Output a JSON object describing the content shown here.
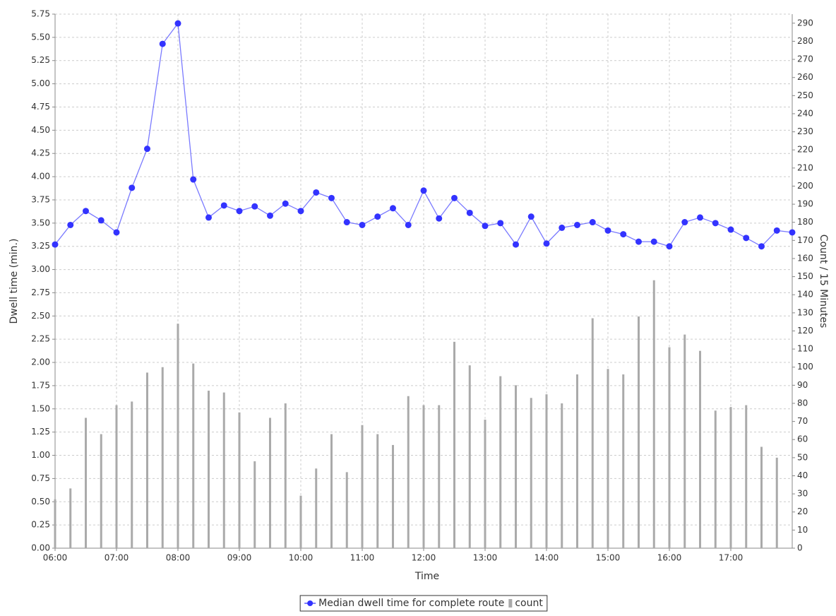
{
  "chart_data": {
    "type": "line",
    "x_label": "Time",
    "y_label": "Dwell time (min.)",
    "y2_label": "Count / 15 Minutes",
    "categories": [
      "06:00",
      null,
      null,
      null,
      "07:00",
      null,
      null,
      null,
      "08:00",
      null,
      null,
      null,
      "09:00",
      null,
      null,
      null,
      "10:00",
      null,
      null,
      null,
      "11:00",
      null,
      null,
      null,
      "12:00",
      null,
      null,
      null,
      "13:00",
      null,
      null,
      null,
      "14:00",
      null,
      null,
      null,
      "15:00",
      null,
      null,
      null,
      "16:00",
      null,
      null,
      null,
      "17:00",
      null,
      null,
      null,
      null
    ],
    "series": [
      {
        "name": "Median dwell time for complete route",
        "type": "line",
        "color": "#3333ff",
        "values": [
          3.27,
          3.48,
          3.63,
          3.53,
          3.4,
          3.88,
          4.3,
          5.43,
          5.65,
          3.97,
          3.56,
          3.69,
          3.63,
          3.68,
          3.58,
          3.71,
          3.63,
          3.83,
          3.77,
          3.51,
          3.48,
          3.57,
          3.66,
          3.48,
          3.85,
          3.55,
          3.77,
          3.61,
          3.47,
          3.5,
          3.27,
          3.57,
          3.28,
          3.45,
          3.48,
          3.51,
          3.42,
          3.38,
          3.3,
          3.3,
          3.25,
          3.51,
          3.56,
          3.5,
          3.43,
          3.34,
          3.25,
          3.42,
          3.4
        ]
      },
      {
        "name": "count",
        "type": "bar",
        "axis": "y2",
        "color": "#aaaaaa",
        "values": [
          27,
          33,
          72,
          63,
          79,
          81,
          97,
          100,
          124,
          102,
          87,
          86,
          75,
          48,
          72,
          80,
          29,
          44,
          63,
          42,
          68,
          63,
          57,
          84,
          79,
          79,
          114,
          101,
          71,
          95,
          90,
          83,
          85,
          80,
          96,
          127,
          99,
          96,
          128,
          148,
          111,
          118,
          109,
          76,
          78,
          79,
          56,
          50,
          null
        ]
      }
    ],
    "ylim": [
      0,
      5.75
    ],
    "yticks": [
      {
        "value": 0,
        "label": "0.00"
      },
      {
        "value": 0.25,
        "label": "0.25"
      },
      {
        "value": 0.5,
        "label": "0.50"
      },
      {
        "value": 0.75,
        "label": "0.75"
      },
      {
        "value": 1,
        "label": "1.00"
      },
      {
        "value": 1.25,
        "label": "1.25"
      },
      {
        "value": 1.5,
        "label": "1.50"
      },
      {
        "value": 1.75,
        "label": "1.75"
      },
      {
        "value": 2,
        "label": "2.00"
      },
      {
        "value": 2.25,
        "label": "2.25"
      },
      {
        "value": 2.5,
        "label": "2.50"
      },
      {
        "value": 2.75,
        "label": "2.75"
      },
      {
        "value": 3,
        "label": "3.00"
      },
      {
        "value": 3.25,
        "label": "3.25"
      },
      {
        "value": 3.5,
        "label": "3.50"
      },
      {
        "value": 3.75,
        "label": "3.75"
      },
      {
        "value": 4,
        "label": "4.00"
      },
      {
        "value": 4.25,
        "label": "4.25"
      },
      {
        "value": 4.5,
        "label": "4.50"
      },
      {
        "value": 4.75,
        "label": "4.75"
      },
      {
        "value": 5,
        "label": "5.00"
      },
      {
        "value": 5.25,
        "label": "5.25"
      },
      {
        "value": 5.5,
        "label": "5.50"
      },
      {
        "value": 5.75,
        "label": "5.75"
      }
    ],
    "y2lim": [
      0,
      295
    ],
    "y2ticks": [
      0,
      10,
      20,
      30,
      40,
      50,
      60,
      70,
      80,
      90,
      100,
      110,
      120,
      130,
      140,
      150,
      160,
      170,
      180,
      190,
      200,
      210,
      220,
      230,
      240,
      250,
      260,
      270,
      280,
      290
    ],
    "grid": true,
    "legend": "bottom"
  }
}
